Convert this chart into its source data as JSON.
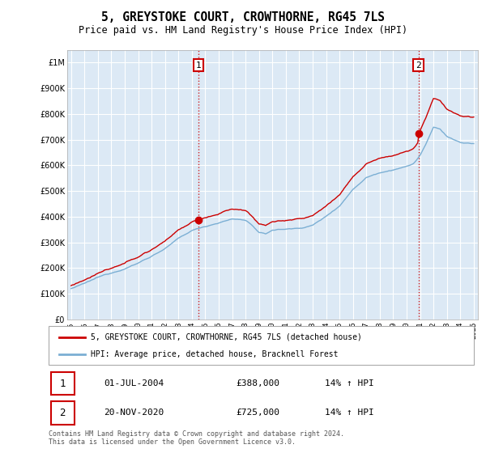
{
  "title": "5, GREYSTOKE COURT, CROWTHORNE, RG45 7LS",
  "subtitle": "Price paid vs. HM Land Registry's House Price Index (HPI)",
  "legend_line1": "5, GREYSTOKE COURT, CROWTHORNE, RG45 7LS (detached house)",
  "legend_line2": "HPI: Average price, detached house, Bracknell Forest",
  "annotation1_date": "01-JUL-2004",
  "annotation1_price": "£388,000",
  "annotation1_hpi": "14% ↑ HPI",
  "annotation2_date": "20-NOV-2020",
  "annotation2_price": "£725,000",
  "annotation2_hpi": "14% ↑ HPI",
  "footnote": "Contains HM Land Registry data © Crown copyright and database right 2024.\nThis data is licensed under the Open Government Licence v3.0.",
  "sale_color": "#cc0000",
  "hpi_color": "#7bafd4",
  "plot_bg_color": "#dce9f5",
  "grid_color": "#ffffff",
  "annotation_vline_color": "#cc0000",
  "sale1_year": 2004.5,
  "sale1_price": 388000,
  "sale2_year": 2020.88,
  "sale2_price": 725000,
  "ylim_min": 0,
  "ylim_max": 1050000,
  "xlim_min": 1994.7,
  "xlim_max": 2025.3
}
